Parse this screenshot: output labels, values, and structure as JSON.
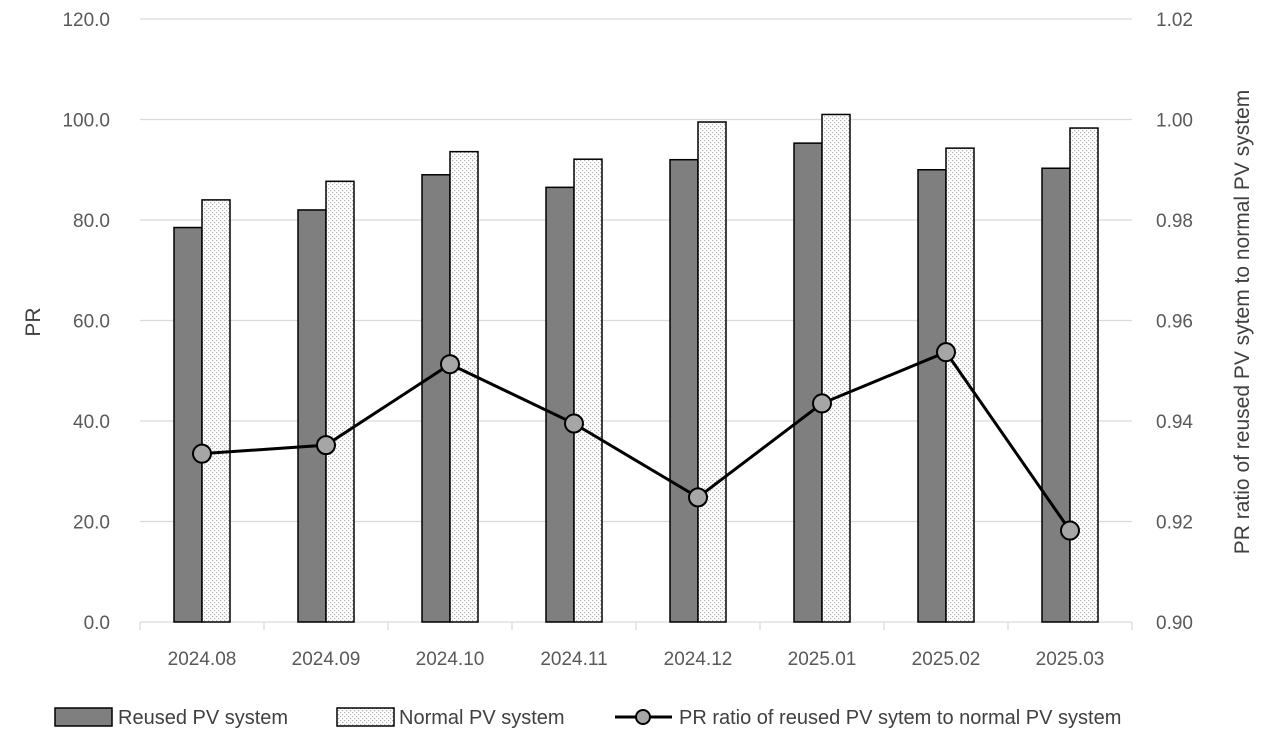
{
  "chart_data": {
    "type": "bar",
    "categories": [
      "2024.08",
      "2024.09",
      "2024.10",
      "2024.11",
      "2024.12",
      "2025.01",
      "2025.02",
      "2025.03"
    ],
    "series": [
      {
        "name": "Reused PV system",
        "type": "bar",
        "axis": "left",
        "color": "#7f7f7f",
        "values": [
          78.5,
          82.0,
          89.0,
          86.5,
          92.0,
          95.3,
          90.0,
          90.3
        ]
      },
      {
        "name": "Normal PV system",
        "type": "bar",
        "axis": "left",
        "color": "#ffffff",
        "pattern": "dotted",
        "values": [
          84.0,
          87.7,
          93.6,
          92.1,
          99.5,
          101.0,
          94.3,
          98.3
        ]
      },
      {
        "name": "PR ratio of reused PV sytem to normal PV system",
        "type": "line",
        "axis": "right",
        "color": "#000000",
        "marker": "circle",
        "marker_color": "#a6a6a6",
        "values": [
          0.9335,
          0.9352,
          0.9513,
          0.9395,
          0.9248,
          0.9435,
          0.9537,
          0.9182
        ]
      }
    ],
    "title": "",
    "xlabel": "",
    "ylabel": "PR",
    "y2label": "PR ratio of reused PV sytem to normal PV system",
    "ylim": [
      0,
      120
    ],
    "y2lim": [
      0.9,
      1.02
    ],
    "yticks": [
      "0.0",
      "20.0",
      "40.0",
      "60.0",
      "80.0",
      "100.0",
      "120.0"
    ],
    "y2ticks": [
      "0.90",
      "0.92",
      "0.94",
      "0.96",
      "0.98",
      "1.00",
      "1.02"
    ],
    "grid": true,
    "legend": "bottom"
  }
}
